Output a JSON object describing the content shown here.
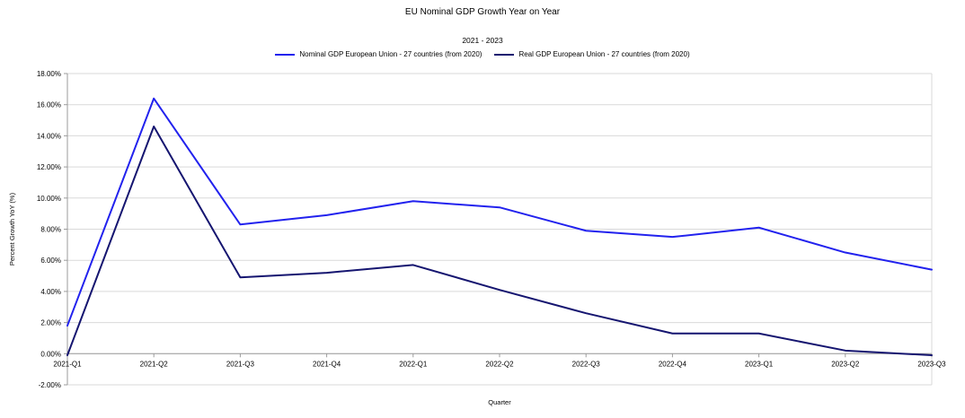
{
  "chart_data": {
    "type": "line",
    "title": "EU Nominal GDP Growth Year on Year",
    "subtitle": "2021 - 2023",
    "xlabel": "Quarter",
    "ylabel": "Percent Growth YoY (%)",
    "categories": [
      "2021-Q1",
      "2021-Q2",
      "2021-Q3",
      "2021-Q4",
      "2022-Q1",
      "2022-Q2",
      "2022-Q3",
      "2022-Q4",
      "2023-Q1",
      "2023-Q2",
      "2023-Q3"
    ],
    "series": [
      {
        "name": "Nominal GDP European Union - 27 countries (from 2020)",
        "color": "#2222EE",
        "values": [
          1.8,
          16.4,
          8.3,
          8.9,
          9.8,
          9.4,
          7.9,
          7.5,
          8.1,
          6.5,
          5.4
        ]
      },
      {
        "name": "Real GDP European Union - 27 countries (from 2020)",
        "color": "#151570",
        "values": [
          -0.1,
          14.6,
          4.9,
          5.2,
          5.7,
          4.1,
          2.6,
          1.3,
          1.3,
          0.2,
          -0.1
        ]
      }
    ],
    "ylim": [
      -2,
      18
    ],
    "ytick_step": 2,
    "ytick_decimals": 2,
    "ytick_suffix": "%",
    "grid": true,
    "legend_position": "top",
    "colors": {
      "gridline": "#D9D9D9",
      "axis": "#9B9B9B",
      "text": "#000000",
      "background": "#FFFFFF"
    }
  }
}
